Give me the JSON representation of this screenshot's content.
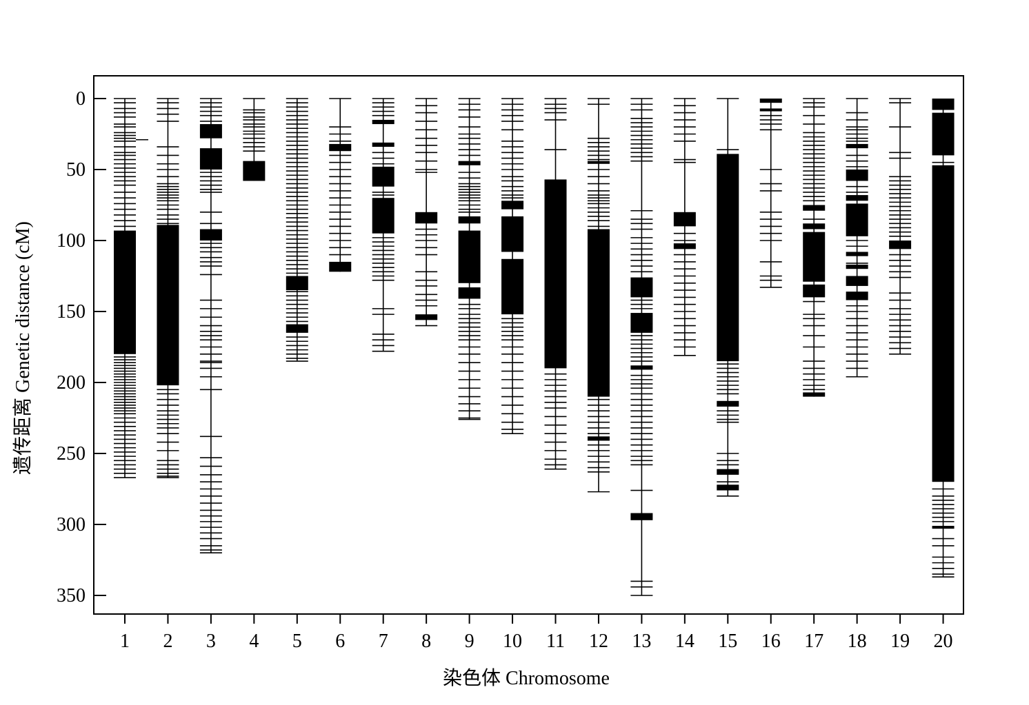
{
  "chart_data": {
    "type": "linkage_map",
    "xlabel": "染色体 Chromosome",
    "ylabel": "遗传距离 Genetic distance (cM)",
    "yticks": [
      0,
      50,
      100,
      150,
      200,
      250,
      300,
      350
    ],
    "ylim": [
      365,
      -15
    ],
    "y_inverted": true,
    "colors": {
      "markers": "#000000",
      "frame": "#000000",
      "background": "#ffffff"
    },
    "chromosomes": [
      {
        "id": 1,
        "label": "1",
        "length": 267,
        "markers": [
          0,
          3,
          7,
          10,
          13,
          18,
          20,
          24,
          26,
          28,
          30,
          34,
          38,
          40,
          43,
          46,
          49,
          52,
          55,
          58,
          61,
          66,
          70,
          74,
          78,
          82,
          86,
          90,
          {
            "from": 93,
            "to": 180
          },
          182,
          184,
          186,
          188,
          190,
          192,
          194,
          196,
          198,
          200,
          202,
          204,
          206,
          208,
          210,
          212,
          214,
          216,
          218,
          220,
          222,
          225,
          228,
          231,
          234,
          237,
          240,
          243,
          246,
          249,
          252,
          255,
          258,
          261,
          264,
          267
        ],
        "extra": [
          {
            "at": 29,
            "note": "offset short tick"
          }
        ]
      },
      {
        "id": 2,
        "label": "2",
        "length": 267,
        "markers": [
          0,
          3,
          7,
          11,
          16,
          34,
          40,
          46,
          50,
          55,
          60,
          62,
          64,
          66,
          68,
          70,
          72,
          75,
          78,
          82,
          85,
          88,
          {
            "from": 89,
            "to": 202
          },
          205,
          208,
          212,
          216,
          220,
          223,
          226,
          229,
          232,
          236,
          242,
          248,
          255,
          258,
          261,
          264,
          266,
          267
        ]
      },
      {
        "id": 3,
        "label": "3",
        "length": 320,
        "markers": [
          0,
          3,
          6,
          9,
          12,
          16,
          {
            "from": 18,
            "to": 28
          },
          {
            "from": 35,
            "to": 50
          },
          52,
          55,
          58,
          61,
          64,
          66,
          80,
          88,
          {
            "from": 92,
            "to": 100
          },
          102,
          105,
          108,
          112,
          115,
          118,
          124,
          142,
          148,
          154,
          160,
          164,
          167,
          170,
          175,
          180,
          185,
          186,
          190,
          196,
          205,
          238,
          253,
          259,
          265,
          270,
          275,
          280,
          285,
          290,
          294,
          298,
          302,
          306,
          310,
          315,
          318,
          320
        ]
      },
      {
        "id": 4,
        "label": "4",
        "length": 58,
        "markers": [
          0,
          8,
          10,
          13,
          15,
          18,
          20,
          23,
          25,
          28,
          31,
          34,
          37,
          {
            "from": 44,
            "to": 58
          }
        ]
      },
      {
        "id": 5,
        "label": "5",
        "length": 185,
        "markers": [
          0,
          3,
          6,
          9,
          12,
          15,
          18,
          21,
          24,
          27,
          30,
          33,
          36,
          39,
          42,
          45,
          48,
          51,
          54,
          57,
          60,
          63,
          66,
          69,
          72,
          75,
          78,
          81,
          84,
          87,
          90,
          93,
          96,
          99,
          102,
          105,
          108,
          111,
          114,
          117,
          120,
          123,
          {
            "from": 125,
            "to": 135
          },
          136,
          139,
          142,
          145,
          148,
          151,
          154,
          157,
          {
            "from": 159,
            "to": 165
          },
          168,
          171,
          174,
          177,
          180,
          183,
          185
        ]
      },
      {
        "id": 6,
        "label": "6",
        "length": 122,
        "markers": [
          0,
          20,
          25,
          30,
          {
            "from": 32,
            "to": 37
          },
          40,
          45,
          50,
          55,
          60,
          65,
          70,
          75,
          80,
          85,
          90,
          95,
          100,
          105,
          110,
          {
            "from": 115,
            "to": 122
          }
        ]
      },
      {
        "id": 7,
        "label": "7",
        "length": 178,
        "markers": [
          0,
          3,
          6,
          9,
          12,
          {
            "from": 15,
            "to": 18
          },
          {
            "from": 31,
            "to": 34
          },
          38,
          42,
          46,
          {
            "from": 48,
            "to": 62
          },
          66,
          68,
          {
            "from": 70,
            "to": 95
          },
          98,
          101,
          104,
          107,
          110,
          113,
          116,
          119,
          122,
          125,
          128,
          148,
          152,
          166,
          170,
          174,
          178
        ]
      },
      {
        "id": 8,
        "label": "8",
        "length": 160,
        "markers": [
          0,
          5,
          10,
          16,
          22,
          28,
          33,
          38,
          44,
          50,
          52,
          {
            "from": 80,
            "to": 88
          },
          92,
          96,
          100,
          105,
          110,
          122,
          128,
          132,
          138,
          142,
          146,
          {
            "from": 152,
            "to": 156
          },
          160
        ]
      },
      {
        "id": 9,
        "label": "9",
        "length": 226,
        "markers": [
          0,
          4,
          8,
          13,
          20,
          25,
          28,
          32,
          36,
          40,
          {
            "from": 44,
            "to": 47
          },
          52,
          56,
          60,
          62,
          64,
          66,
          68,
          70,
          72,
          75,
          78,
          80,
          {
            "from": 83,
            "to": 88
          },
          {
            "from": 93,
            "to": 130
          },
          {
            "from": 133,
            "to": 141
          },
          145,
          148,
          152,
          155,
          158,
          161,
          164,
          167,
          170,
          175,
          180,
          186,
          192,
          198,
          204,
          210,
          215,
          220,
          225,
          226
        ]
      },
      {
        "id": 10,
        "label": "10",
        "length": 236,
        "markers": [
          0,
          4,
          8,
          12,
          16,
          22,
          30,
          34,
          38,
          42,
          46,
          50,
          55,
          58,
          62,
          65,
          68,
          70,
          {
            "from": 72,
            "to": 78
          },
          {
            "from": 83,
            "to": 108
          },
          {
            "from": 113,
            "to": 152
          },
          155,
          158,
          161,
          164,
          167,
          170,
          175,
          180,
          186,
          192,
          198,
          204,
          210,
          216,
          222,
          228,
          233,
          236
        ]
      },
      {
        "id": 11,
        "label": "11",
        "length": 261,
        "markers": [
          0,
          4,
          7,
          10,
          15,
          36,
          {
            "from": 57,
            "to": 190
          },
          194,
          198,
          202,
          206,
          210,
          214,
          218,
          224,
          230,
          236,
          242,
          248,
          254,
          258,
          261
        ]
      },
      {
        "id": 12,
        "label": "12",
        "length": 277,
        "markers": [
          0,
          4,
          28,
          31,
          34,
          37,
          40,
          43,
          {
            "from": 44,
            "to": 46
          },
          50,
          55,
          60,
          65,
          68,
          70,
          72,
          74,
          77,
          80,
          83,
          86,
          90,
          {
            "from": 92,
            "to": 210
          },
          212,
          216,
          220,
          224,
          228,
          232,
          236,
          {
            "from": 238,
            "to": 241
          },
          244,
          248,
          252,
          256,
          260,
          263,
          277
        ]
      },
      {
        "id": 13,
        "label": "13",
        "length": 350,
        "markers": [
          0,
          4,
          8,
          14,
          17,
          20,
          23,
          26,
          29,
          32,
          35,
          38,
          41,
          44,
          79,
          85,
          88,
          92,
          98,
          102,
          106,
          110,
          114,
          118,
          122,
          {
            "from": 126,
            "to": 140
          },
          142,
          145,
          148,
          {
            "from": 151,
            "to": 165
          },
          167,
          170,
          173,
          176,
          179,
          182,
          185,
          {
            "from": 188,
            "to": 191
          },
          195,
          198,
          201,
          204,
          208,
          212,
          216,
          220,
          224,
          228,
          232,
          236,
          240,
          244,
          248,
          252,
          255,
          258,
          276,
          {
            "from": 292,
            "to": 297
          },
          340,
          344,
          350
        ]
      },
      {
        "id": 14,
        "label": "14",
        "length": 181,
        "markers": [
          0,
          5,
          10,
          15,
          20,
          25,
          30,
          43,
          45,
          {
            "from": 80,
            "to": 90
          },
          95,
          100,
          {
            "from": 102,
            "to": 106
          },
          110,
          115,
          120,
          125,
          130,
          135,
          140,
          145,
          150,
          155,
          160,
          165,
          170,
          175,
          181
        ]
      },
      {
        "id": 15,
        "label": "15",
        "length": 280,
        "markers": [
          0,
          36,
          {
            "from": 39,
            "to": 185
          },
          187,
          190,
          193,
          196,
          199,
          202,
          205,
          208,
          {
            "from": 213,
            "to": 217
          },
          220,
          223,
          226,
          228,
          250,
          255,
          258,
          {
            "from": 261,
            "to": 265
          },
          270,
          {
            "from": 272,
            "to": 276
          },
          280
        ]
      },
      {
        "id": 16,
        "label": "16",
        "length": 133,
        "markers": [
          {
            "from": 0,
            "to": 3
          },
          {
            "from": 7,
            "to": 9
          },
          12,
          15,
          18,
          22,
          50,
          60,
          65,
          80,
          85,
          90,
          95,
          100,
          115,
          125,
          128,
          133
        ]
      },
      {
        "id": 17,
        "label": "17",
        "length": 210,
        "markers": [
          0,
          3,
          6,
          12,
          18,
          24,
          27,
          30,
          33,
          36,
          39,
          42,
          45,
          48,
          51,
          54,
          57,
          60,
          63,
          66,
          69,
          72,
          {
            "from": 75,
            "to": 79
          },
          85,
          {
            "from": 88,
            "to": 92
          },
          {
            "from": 94,
            "to": 129
          },
          {
            "from": 131,
            "to": 140
          },
          143,
          152,
          155,
          160,
          167,
          175,
          185,
          190,
          194,
          198,
          202,
          205,
          {
            "from": 207,
            "to": 210
          }
        ]
      },
      {
        "id": 18,
        "label": "18",
        "length": 196,
        "markers": [
          0,
          10,
          15,
          20,
          22,
          25,
          28,
          30,
          {
            "from": 32,
            "to": 35
          },
          40,
          44,
          48,
          {
            "from": 50,
            "to": 58
          },
          62,
          66,
          {
            "from": 68,
            "to": 72
          },
          {
            "from": 74,
            "to": 97
          },
          100,
          104,
          {
            "from": 108,
            "to": 111
          },
          116,
          {
            "from": 117,
            "to": 120
          },
          {
            "from": 125,
            "to": 132
          },
          {
            "from": 136,
            "to": 142
          },
          146,
          150,
          155,
          160,
          165,
          170,
          175,
          180,
          185,
          190,
          196
        ]
      },
      {
        "id": 19,
        "label": "19",
        "length": 180,
        "markers": [
          0,
          3,
          20,
          38,
          42,
          55,
          58,
          61,
          64,
          67,
          70,
          73,
          76,
          79,
          82,
          85,
          88,
          91,
          94,
          97,
          {
            "from": 100,
            "to": 106
          },
          110,
          114,
          118,
          122,
          126,
          137,
          142,
          148,
          152,
          156,
          160,
          164,
          168,
          172,
          176,
          180
        ]
      },
      {
        "id": 20,
        "label": "20",
        "length": 337,
        "markers": [
          {
            "from": 0,
            "to": 8
          },
          {
            "from": 10,
            "to": 40
          },
          45,
          {
            "from": 47,
            "to": 270
          },
          275,
          280,
          283,
          286,
          289,
          292,
          295,
          298,
          {
            "from": 301,
            "to": 303
          },
          310,
          315,
          323,
          327,
          331,
          335,
          337
        ]
      }
    ]
  }
}
